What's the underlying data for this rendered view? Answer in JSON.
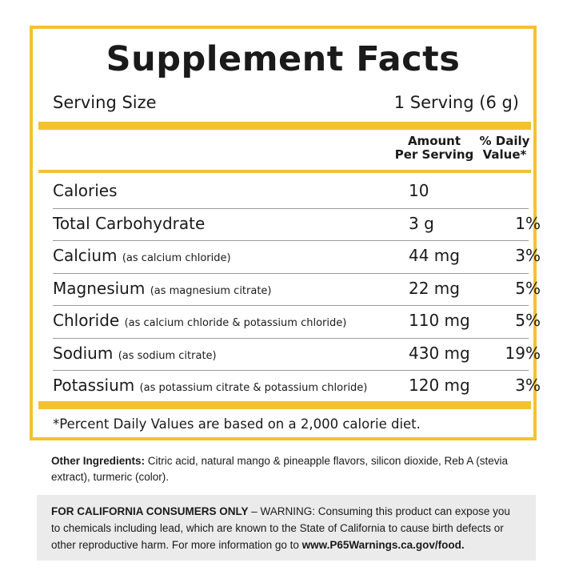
{
  "facts": {
    "title": "Supplement Facts",
    "serving_size_label": "Serving Size",
    "serving_size_value": "1 Serving (6 g)",
    "column_headers": {
      "amount_line1": "Amount",
      "amount_line2": "Per Serving",
      "dv_line1": "% Daily",
      "dv_line2": "Value*"
    },
    "rows": [
      {
        "name": "Calories",
        "qualifier": "",
        "amount": "10",
        "dv": ""
      },
      {
        "name": "Total Carbohydrate",
        "qualifier": "",
        "amount": "3 g",
        "dv": "1%"
      },
      {
        "name": "Calcium",
        "qualifier": "(as calcium chloride)",
        "amount": "44 mg",
        "dv": "3%"
      },
      {
        "name": "Magnesium",
        "qualifier": "(as magnesium citrate)",
        "amount": "22 mg",
        "dv": "5%"
      },
      {
        "name": "Chloride",
        "qualifier": "(as calcium chloride & potassium chloride)",
        "amount": "110 mg",
        "dv": "5%"
      },
      {
        "name": "Sodium",
        "qualifier": "(as sodium citrate)",
        "amount": "430 mg",
        "dv": "19%"
      },
      {
        "name": "Potassium",
        "qualifier": "(as potassium citrate & potassium chloride)",
        "amount": "120 mg",
        "dv": "3%"
      }
    ],
    "footnote": "*Percent Daily Values are based on a 2,000 calorie diet."
  },
  "ingredients": {
    "label": "Other Ingredients:",
    "text": " Citric acid, natural mango & pineapple flavors, silicon dioxide, Reb A (stevia extract), turmeric (color)."
  },
  "warning": {
    "label": "FOR CALIFORNIA CONSUMERS ONLY",
    "text": " – WARNING: Consuming this product can expose you to chemicals including lead, which are known to the State of California to cause birth defects or other reproductive harm. For more information go to ",
    "link": "www.P65Warnings.ca.gov/food."
  },
  "colors": {
    "accent": "#f4c230",
    "warning_bg": "#ebebeb",
    "text": "#1a1a1a"
  }
}
